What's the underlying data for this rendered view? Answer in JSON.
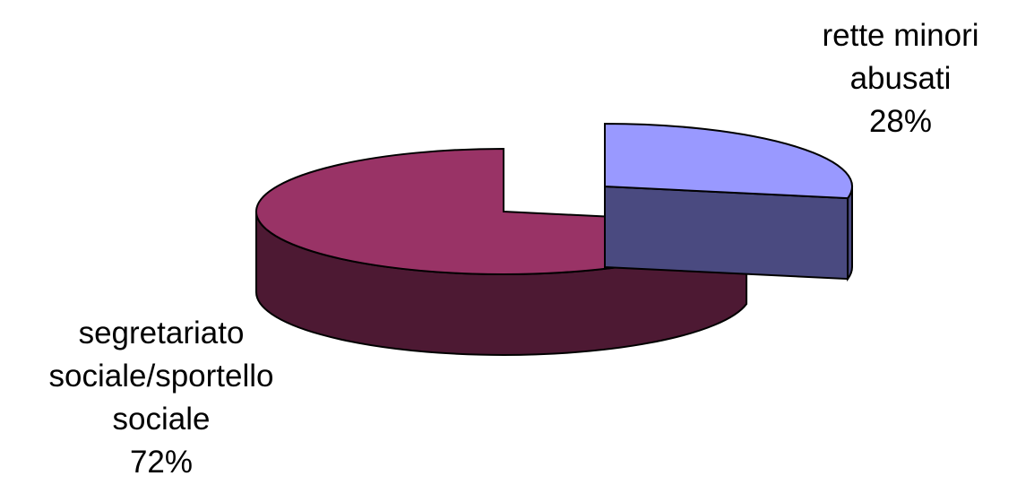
{
  "chart_data": {
    "type": "pie",
    "three_d": true,
    "exploded": true,
    "legend": "none",
    "slices": [
      {
        "label_lines": [
          "rette minori",
          "abusati"
        ],
        "percent_label": "28%",
        "value": 28,
        "colors": {
          "top": "#9999ff",
          "side": "#4a4a80"
        }
      },
      {
        "label_lines": [
          "segretariato",
          "sociale/sportello",
          "sociale"
        ],
        "percent_label": "72%",
        "value": 72,
        "colors": {
          "top": "#993366",
          "side": "#4d1933"
        }
      }
    ]
  }
}
